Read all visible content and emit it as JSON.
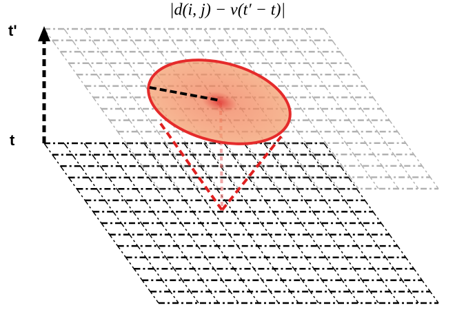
{
  "formula": "|d(i, j) − v(t′ − t)|",
  "axis": {
    "top_label": "t'",
    "bottom_label": "t"
  }
}
